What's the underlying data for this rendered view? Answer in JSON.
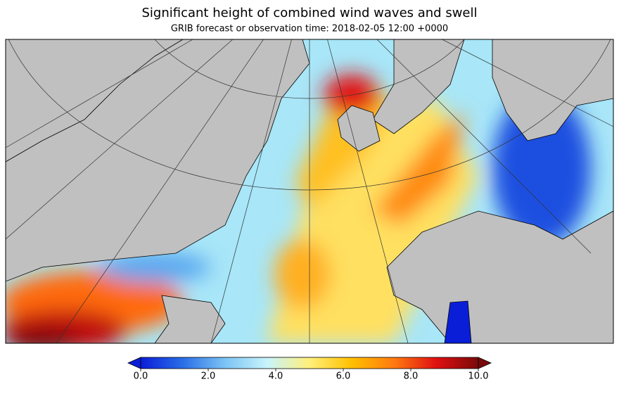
{
  "title": "Significant height of combined wind waves and swell",
  "subtitle": "GRIB forecast or observation time: 2018-02-05 12:00 +0000",
  "colorbar": {
    "lim": [
      0,
      10
    ],
    "ticks": [
      {
        "value": 0,
        "label": "0.0"
      },
      {
        "value": 2,
        "label": "2.0"
      },
      {
        "value": 4,
        "label": "4.0"
      },
      {
        "value": 6,
        "label": "6.0"
      },
      {
        "value": 8,
        "label": "8.0"
      },
      {
        "value": 10,
        "label": "10.0"
      }
    ],
    "colors": [
      "#0a1ed8",
      "#2a6ee8",
      "#7cc4f4",
      "#c8f4fc",
      "#fff07a",
      "#ffc000",
      "#ff7a10",
      "#e01010",
      "#7a0a0a"
    ]
  }
}
